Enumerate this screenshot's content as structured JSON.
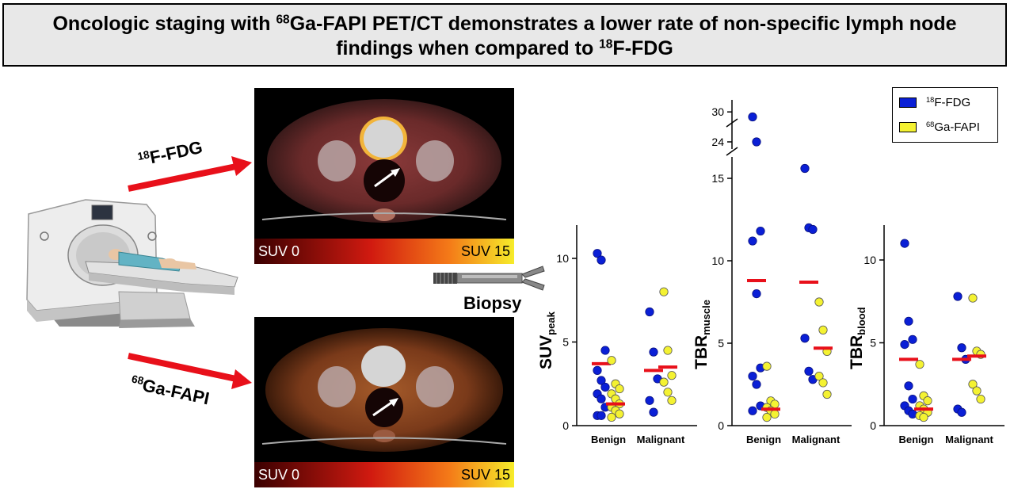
{
  "title": {
    "part1": "Oncologic staging with ",
    "sup1": "68",
    "part2": "Ga-FAPI PET/CT demonstrates a lower rate of non-specific lymph node",
    "part3": "findings when compared to ",
    "sup2": "18",
    "part4": "F-FDG"
  },
  "tracers": {
    "fdg": {
      "sup": "18",
      "text": "F-FDG"
    },
    "fapi": {
      "sup": "68",
      "text": "Ga-FAPI"
    }
  },
  "scans": {
    "suv_min_label": "SUV 0",
    "suv_max_label": "SUV 15"
  },
  "biopsy_label": "Biopsy",
  "colors": {
    "fdg": "#0a1fd6",
    "fapi": "#f4f232",
    "mean": "#e8101a",
    "arrow": "#e8101a"
  },
  "legend": {
    "fdg": {
      "sup": "18",
      "text": "F-FDG"
    },
    "fapi": {
      "sup": "68",
      "text": "Ga-FAPI"
    }
  },
  "chart_data": [
    {
      "type": "scatter",
      "ylabel_main": "SUV",
      "ylabel_sub": "peak",
      "categories": [
        "Benign",
        "Malignant"
      ],
      "ylim": [
        0,
        12
      ],
      "yticks": [
        "0",
        "5",
        "10"
      ],
      "series": [
        {
          "name": "18F-FDG",
          "group": "Benign",
          "values": [
            10.3,
            9.9,
            4.5,
            3.3,
            2.7,
            2.3,
            1.9,
            1.6,
            1.1,
            0.6,
            0.6
          ],
          "mean": 3.7
        },
        {
          "name": "68Ga-FAPI",
          "group": "Benign",
          "values": [
            3.9,
            2.5,
            2.2,
            1.9,
            1.6,
            1.3,
            1.1,
            0.9,
            0.7,
            0.5
          ],
          "mean": 1.3
        },
        {
          "name": "18F-FDG",
          "group": "Malignant",
          "values": [
            6.8,
            4.4,
            2.8,
            1.5,
            0.8
          ],
          "mean": 3.3
        },
        {
          "name": "68Ga-FAPI",
          "group": "Malignant",
          "values": [
            8.0,
            4.5,
            3.0,
            2.6,
            2.0,
            1.5
          ],
          "mean": 3.5
        }
      ]
    },
    {
      "type": "scatter",
      "ylabel_main": "TBR",
      "ylabel_sub": "muscle",
      "categories": [
        "Benign",
        "Malignant"
      ],
      "ylim": [
        0,
        30
      ],
      "axis_break": true,
      "yticks": [
        "0",
        "5",
        "10",
        "15",
        "24",
        "30"
      ],
      "series": [
        {
          "name": "18F-FDG",
          "group": "Benign",
          "values": [
            29.0,
            24.0,
            11.8,
            11.2,
            8.0,
            3.5,
            3.0,
            2.5,
            1.2,
            0.9
          ],
          "mean": 8.8
        },
        {
          "name": "68Ga-FAPI",
          "group": "Benign",
          "values": [
            3.6,
            1.5,
            1.3,
            1.1,
            0.9,
            0.7,
            0.5
          ],
          "mean": 1.0
        },
        {
          "name": "18F-FDG",
          "group": "Malignant",
          "values": [
            15.6,
            12.0,
            11.9,
            5.3,
            3.3,
            2.8
          ],
          "mean": 8.7
        },
        {
          "name": "68Ga-FAPI",
          "group": "Malignant",
          "values": [
            7.5,
            5.8,
            4.5,
            3.0,
            2.6,
            1.9
          ],
          "mean": 4.7
        }
      ]
    },
    {
      "type": "scatter",
      "ylabel_main": "TBR",
      "ylabel_sub": "blood",
      "categories": [
        "Benign",
        "Malignant"
      ],
      "ylim": [
        0,
        12
      ],
      "yticks": [
        "0",
        "5",
        "10"
      ],
      "series": [
        {
          "name": "18F-FDG",
          "group": "Benign",
          "values": [
            11.0,
            6.3,
            5.2,
            4.9,
            2.4,
            1.6,
            1.2,
            0.9,
            0.7
          ],
          "mean": 4.0
        },
        {
          "name": "68Ga-FAPI",
          "group": "Benign",
          "values": [
            3.7,
            1.8,
            1.5,
            1.2,
            1.0,
            0.8,
            0.6,
            0.5
          ],
          "mean": 1.0
        },
        {
          "name": "18F-FDG",
          "group": "Malignant",
          "values": [
            7.8,
            4.7,
            4.0,
            1.0,
            0.8
          ],
          "mean": 4.0
        },
        {
          "name": "68Ga-FAPI",
          "group": "Malignant",
          "values": [
            7.7,
            4.5,
            4.3,
            2.5,
            2.1,
            1.6
          ],
          "mean": 4.2
        }
      ]
    }
  ]
}
